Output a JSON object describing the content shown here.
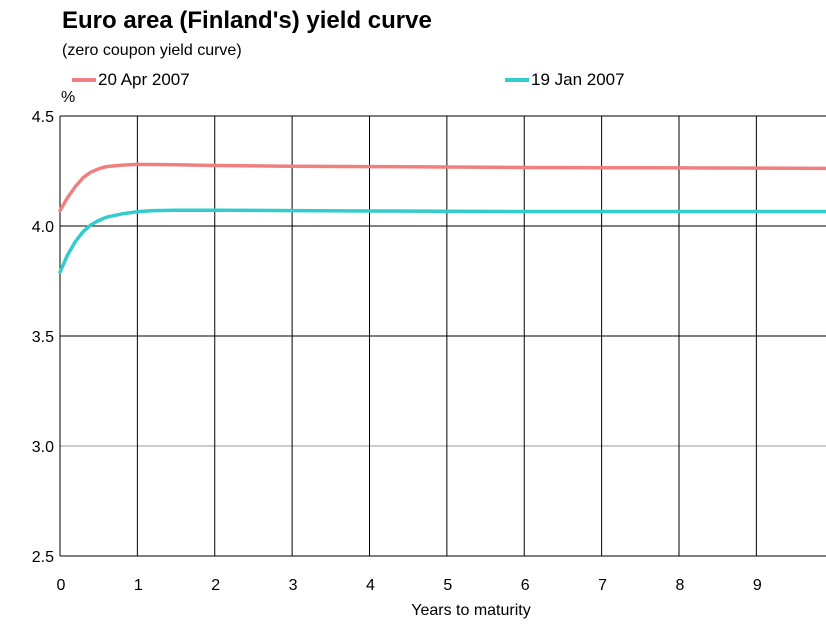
{
  "chart_data": {
    "type": "line",
    "title": "Euro area (Finland's) yield curve",
    "subtitle": "(zero coupon yield curve)",
    "ylabel": "%",
    "xlabel": "Years to maturity",
    "xlim": [
      0,
      9.9
    ],
    "ylim": [
      2.5,
      4.5
    ],
    "x_ticks": [
      0,
      1,
      2,
      3,
      4,
      5,
      6,
      7,
      8,
      9
    ],
    "y_ticks": [
      2.5,
      3.0,
      3.5,
      4.0,
      4.5
    ],
    "y_tick_labels": [
      "2.5",
      "3.0",
      "3.5",
      "4.0",
      "4.5"
    ],
    "grid": true,
    "legend": "top",
    "series": [
      {
        "name": "20 Apr 2007",
        "color": "#f08080",
        "x": [
          0,
          0.1,
          0.2,
          0.3,
          0.4,
          0.5,
          0.6,
          0.8,
          1.0,
          1.5,
          2,
          3,
          4,
          5,
          6,
          7,
          8,
          9,
          9.9
        ],
        "y": [
          4.07,
          4.13,
          4.18,
          4.22,
          4.245,
          4.26,
          4.27,
          4.277,
          4.28,
          4.278,
          4.275,
          4.272,
          4.27,
          4.268,
          4.266,
          4.265,
          4.264,
          4.263,
          4.262
        ]
      },
      {
        "name": "19 Jan 2007",
        "color": "#33cccc",
        "x": [
          0,
          0.1,
          0.2,
          0.3,
          0.4,
          0.5,
          0.6,
          0.8,
          1.0,
          1.2,
          1.5,
          2,
          3,
          4,
          5,
          6,
          7,
          8,
          9,
          9.9
        ],
        "y": [
          3.79,
          3.87,
          3.93,
          3.975,
          4.005,
          4.025,
          4.04,
          4.055,
          4.065,
          4.07,
          4.072,
          4.072,
          4.07,
          4.068,
          4.067,
          4.066,
          4.066,
          4.066,
          4.066,
          4.066
        ]
      }
    ]
  }
}
